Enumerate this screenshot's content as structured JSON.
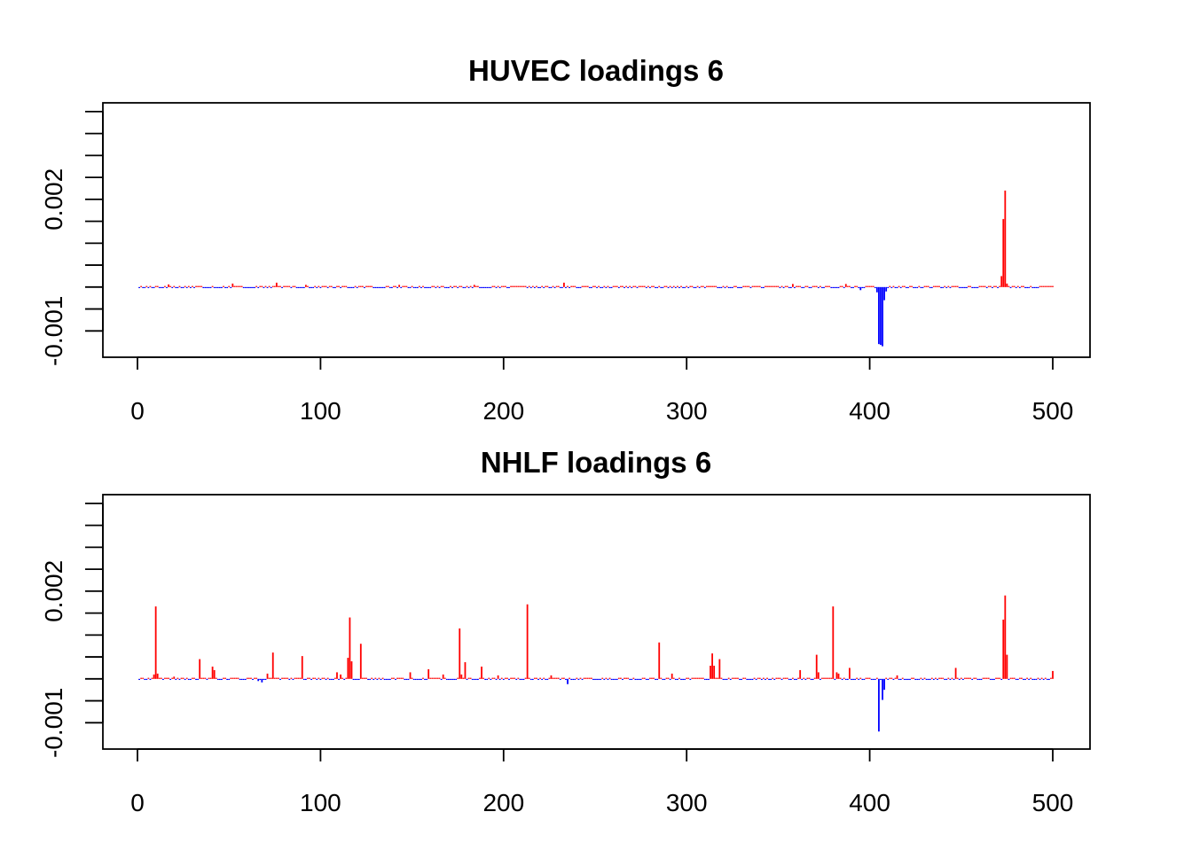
{
  "chart_data": [
    {
      "type": "bar",
      "title": "HUVEC loadings 6",
      "xlabel": "",
      "ylabel": "",
      "xlim": [
        0,
        500
      ],
      "ylim": [
        -0.0016,
        0.0042
      ],
      "xticks": [
        "0",
        "100",
        "200",
        "300",
        "400",
        "500"
      ],
      "yticks": [
        "-0.001",
        "0.002"
      ],
      "colors": {
        "positive": "#ff0000",
        "negative": "#0000ff",
        "frame": "#000000"
      },
      "n_points": 500,
      "baseline_noise": 2e-05,
      "spikes": [
        {
          "x": 17,
          "y": 6e-05
        },
        {
          "x": 52,
          "y": 8e-05
        },
        {
          "x": 76,
          "y": 0.0001
        },
        {
          "x": 92,
          "y": 5e-05
        },
        {
          "x": 143,
          "y": 5e-05
        },
        {
          "x": 184,
          "y": 5e-05
        },
        {
          "x": 233,
          "y": 0.0001
        },
        {
          "x": 358,
          "y": 7e-05
        },
        {
          "x": 387,
          "y": 7e-05
        },
        {
          "x": 395,
          "y": -7e-05
        },
        {
          "x": 404,
          "y": -0.00012
        },
        {
          "x": 405,
          "y": -0.0013
        },
        {
          "x": 406,
          "y": -0.00132
        },
        {
          "x": 407,
          "y": -0.00135
        },
        {
          "x": 408,
          "y": -0.0003
        },
        {
          "x": 409,
          "y": -0.0001
        },
        {
          "x": 472,
          "y": 0.00025
        },
        {
          "x": 473,
          "y": 0.00155
        },
        {
          "x": 474,
          "y": 0.0022
        },
        {
          "x": 475,
          "y": 8e-05
        }
      ]
    },
    {
      "type": "bar",
      "title": "NHLF loadings 6",
      "xlabel": "",
      "ylabel": "",
      "xlim": [
        0,
        500
      ],
      "ylim": [
        -0.0016,
        0.0042
      ],
      "xticks": [
        "0",
        "100",
        "200",
        "300",
        "400",
        "500"
      ],
      "yticks": [
        "-0.001",
        "0.002"
      ],
      "colors": {
        "positive": "#ff0000",
        "negative": "#0000ff",
        "frame": "#000000"
      },
      "n_points": 500,
      "baseline_noise": 2e-05,
      "spikes": [
        {
          "x": 9,
          "y": 0.0001
        },
        {
          "x": 10,
          "y": 0.00165
        },
        {
          "x": 11,
          "y": 0.00012
        },
        {
          "x": 20,
          "y": 5e-05
        },
        {
          "x": 34,
          "y": 0.00045
        },
        {
          "x": 41,
          "y": 0.00028
        },
        {
          "x": 42,
          "y": 0.0002
        },
        {
          "x": 66,
          "y": -5e-05
        },
        {
          "x": 68,
          "y": -8e-05
        },
        {
          "x": 71,
          "y": 0.00012
        },
        {
          "x": 74,
          "y": 0.0006
        },
        {
          "x": 90,
          "y": 0.00052
        },
        {
          "x": 109,
          "y": 0.00015
        },
        {
          "x": 111,
          "y": 0.0001
        },
        {
          "x": 115,
          "y": 0.00048
        },
        {
          "x": 116,
          "y": 0.0014
        },
        {
          "x": 117,
          "y": 0.0004
        },
        {
          "x": 122,
          "y": 0.0008
        },
        {
          "x": 149,
          "y": 0.00015
        },
        {
          "x": 159,
          "y": 0.00022
        },
        {
          "x": 167,
          "y": 0.0001
        },
        {
          "x": 176,
          "y": 0.00115
        },
        {
          "x": 177,
          "y": 0.0001
        },
        {
          "x": 179,
          "y": 0.00038
        },
        {
          "x": 188,
          "y": 0.00028
        },
        {
          "x": 197,
          "y": 8e-05
        },
        {
          "x": 213,
          "y": 0.0017
        },
        {
          "x": 226,
          "y": 8e-05
        },
        {
          "x": 235,
          "y": -0.00012
        },
        {
          "x": 285,
          "y": 0.00083
        },
        {
          "x": 292,
          "y": 0.00012
        },
        {
          "x": 313,
          "y": 0.0003
        },
        {
          "x": 314,
          "y": 0.00058
        },
        {
          "x": 315,
          "y": 0.0003
        },
        {
          "x": 318,
          "y": 0.00045
        },
        {
          "x": 362,
          "y": 0.0002
        },
        {
          "x": 371,
          "y": 0.00055
        },
        {
          "x": 372,
          "y": 0.00015
        },
        {
          "x": 380,
          "y": 0.00165
        },
        {
          "x": 382,
          "y": 0.00015
        },
        {
          "x": 383,
          "y": 0.00012
        },
        {
          "x": 389,
          "y": 0.00025
        },
        {
          "x": 405,
          "y": -0.0012
        },
        {
          "x": 407,
          "y": -0.00048
        },
        {
          "x": 408,
          "y": -0.00025
        },
        {
          "x": 415,
          "y": 8e-05
        },
        {
          "x": 447,
          "y": 0.00025
        },
        {
          "x": 473,
          "y": 0.00135
        },
        {
          "x": 474,
          "y": 0.0019
        },
        {
          "x": 475,
          "y": 0.00055
        },
        {
          "x": 500,
          "y": 0.00018
        }
      ]
    }
  ]
}
